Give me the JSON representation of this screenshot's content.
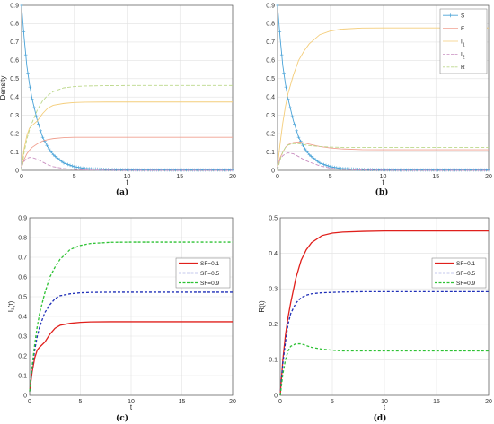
{
  "chart_data": [
    {
      "type": "line",
      "caption": "(a)",
      "xlabel": "t",
      "ylabel": "Density",
      "xlim": [
        0,
        20
      ],
      "ylim": [
        0,
        0.9
      ],
      "xticks": [
        "0",
        "5",
        "10",
        "15",
        "20"
      ],
      "yticks": [
        "0",
        "0.1",
        "0.2",
        "0.3",
        "0.4",
        "0.5",
        "0.6",
        "0.7",
        "0.8",
        "0.9"
      ],
      "grid": true,
      "legend_position": "top-right",
      "x": [
        0,
        0.25,
        0.5,
        0.75,
        1,
        1.5,
        2,
        2.5,
        3,
        4,
        5,
        6,
        8,
        10,
        12,
        14,
        16,
        18,
        20
      ],
      "series": [
        {
          "name": "S",
          "color": "#4aa3d8",
          "style": "solid-marker",
          "values": [
            0.9,
            0.72,
            0.57,
            0.47,
            0.39,
            0.27,
            0.18,
            0.125,
            0.085,
            0.04,
            0.02,
            0.01,
            0.005,
            0.003,
            0.002,
            0.002,
            0.002,
            0.002,
            0.002
          ]
        },
        {
          "name": "E",
          "color": "#f0a090",
          "style": "solid",
          "values": [
            0.02,
            0.06,
            0.09,
            0.11,
            0.125,
            0.145,
            0.16,
            0.168,
            0.173,
            0.178,
            0.18,
            0.18,
            0.18,
            0.18,
            0.18,
            0.18,
            0.18,
            0.18,
            0.18
          ]
        },
        {
          "name": "I_1",
          "color": "#f4cd7a",
          "style": "solid",
          "values": [
            0.02,
            0.12,
            0.19,
            0.23,
            0.245,
            0.27,
            0.31,
            0.34,
            0.355,
            0.365,
            0.37,
            0.372,
            0.373,
            0.373,
            0.373,
            0.373,
            0.373,
            0.373,
            0.373
          ]
        },
        {
          "name": "I_2",
          "color": "#c98ec0",
          "style": "dashed",
          "values": [
            0.02,
            0.05,
            0.065,
            0.07,
            0.07,
            0.06,
            0.045,
            0.03,
            0.02,
            0.01,
            0.005,
            0.002,
            0.001,
            0.0,
            0.0,
            0.0,
            0.0,
            0.0,
            0.0
          ]
        },
        {
          "name": "R",
          "color": "#bcd88a",
          "style": "dashed",
          "values": [
            0.0,
            0.1,
            0.17,
            0.22,
            0.26,
            0.33,
            0.38,
            0.41,
            0.43,
            0.45,
            0.457,
            0.46,
            0.462,
            0.463,
            0.463,
            0.463,
            0.463,
            0.463,
            0.463
          ]
        }
      ]
    },
    {
      "type": "line",
      "caption": "(b)",
      "xlabel": "t",
      "ylabel": "",
      "xlim": [
        0,
        20
      ],
      "ylim": [
        0,
        0.9
      ],
      "xticks": [
        "0",
        "5",
        "10",
        "15",
        "20"
      ],
      "yticks": [
        "0",
        "0.1",
        "0.2",
        "0.3",
        "0.4",
        "0.5",
        "0.6",
        "0.7",
        "0.8",
        "0.9"
      ],
      "grid": true,
      "legend_position": "top-right",
      "x": [
        0,
        0.25,
        0.5,
        0.75,
        1,
        1.5,
        2,
        2.5,
        3,
        4,
        5,
        6,
        8,
        10,
        12,
        14,
        16,
        18,
        20
      ],
      "series": [
        {
          "name": "S",
          "color": "#4aa3d8",
          "style": "solid-marker",
          "values": [
            0.9,
            0.72,
            0.57,
            0.47,
            0.39,
            0.27,
            0.18,
            0.125,
            0.085,
            0.04,
            0.02,
            0.01,
            0.005,
            0.003,
            0.002,
            0.002,
            0.002,
            0.002,
            0.002
          ]
        },
        {
          "name": "E",
          "color": "#f0a090",
          "style": "solid",
          "values": [
            0.02,
            0.07,
            0.1,
            0.125,
            0.14,
            0.152,
            0.155,
            0.15,
            0.143,
            0.13,
            0.122,
            0.117,
            0.113,
            0.112,
            0.112,
            0.112,
            0.112,
            0.112,
            0.112
          ]
        },
        {
          "name": "I_1",
          "color": "#f4cd7a",
          "style": "solid",
          "values": [
            0.02,
            0.15,
            0.26,
            0.35,
            0.42,
            0.52,
            0.6,
            0.65,
            0.69,
            0.74,
            0.76,
            0.77,
            0.776,
            0.777,
            0.777,
            0.777,
            0.777,
            0.777,
            0.777
          ]
        },
        {
          "name": "I_2",
          "color": "#c98ec0",
          "style": "dashed",
          "values": [
            0.02,
            0.06,
            0.08,
            0.09,
            0.095,
            0.09,
            0.075,
            0.058,
            0.045,
            0.025,
            0.012,
            0.006,
            0.002,
            0.001,
            0.0,
            0.0,
            0.0,
            0.0,
            0.0
          ]
        },
        {
          "name": "R",
          "color": "#bcd88a",
          "style": "dashed",
          "values": [
            0.0,
            0.06,
            0.1,
            0.125,
            0.138,
            0.145,
            0.145,
            0.14,
            0.135,
            0.13,
            0.127,
            0.125,
            0.125,
            0.125,
            0.125,
            0.125,
            0.125,
            0.125,
            0.125
          ]
        }
      ]
    },
    {
      "type": "line",
      "caption": "(c)",
      "xlabel": "t",
      "ylabel": "I₁(t)",
      "xlim": [
        0,
        20
      ],
      "ylim": [
        0,
        0.9
      ],
      "xticks": [
        "0",
        "5",
        "10",
        "15",
        "20"
      ],
      "yticks": [
        "0",
        "0.1",
        "0.2",
        "0.3",
        "0.4",
        "0.5",
        "0.6",
        "0.7",
        "0.8",
        "0.9"
      ],
      "grid": true,
      "legend_position": "right",
      "x": [
        0,
        0.25,
        0.5,
        0.75,
        1,
        1.5,
        2,
        2.5,
        3,
        4,
        5,
        6,
        8,
        10,
        12,
        14,
        16,
        18,
        20
      ],
      "series": [
        {
          "name": "SF=0.1",
          "color": "#e0201c",
          "style": "solid",
          "values": [
            0.02,
            0.12,
            0.19,
            0.23,
            0.245,
            0.27,
            0.31,
            0.34,
            0.355,
            0.365,
            0.37,
            0.372,
            0.373,
            0.373,
            0.373,
            0.373,
            0.373,
            0.373,
            0.373
          ]
        },
        {
          "name": "SF=0.5",
          "color": "#1f2fb8",
          "style": "dashed",
          "values": [
            0.02,
            0.14,
            0.23,
            0.3,
            0.35,
            0.42,
            0.46,
            0.49,
            0.505,
            0.515,
            0.52,
            0.522,
            0.523,
            0.523,
            0.523,
            0.523,
            0.523,
            0.523,
            0.523
          ]
        },
        {
          "name": "SF=0.9",
          "color": "#2ec234",
          "style": "dashed",
          "values": [
            0.02,
            0.15,
            0.26,
            0.35,
            0.42,
            0.52,
            0.6,
            0.65,
            0.69,
            0.74,
            0.76,
            0.77,
            0.776,
            0.777,
            0.777,
            0.777,
            0.777,
            0.777,
            0.777
          ]
        }
      ]
    },
    {
      "type": "line",
      "caption": "(d)",
      "xlabel": "t",
      "ylabel": "R(t)",
      "xlim": [
        0,
        20
      ],
      "ylim": [
        0,
        0.5
      ],
      "xticks": [
        "0",
        "5",
        "10",
        "15",
        "20"
      ],
      "yticks": [
        "0",
        "0.1",
        "0.2",
        "0.3",
        "0.4",
        "0.5"
      ],
      "grid": true,
      "legend_position": "right",
      "x": [
        0,
        0.25,
        0.5,
        0.75,
        1,
        1.5,
        2,
        2.5,
        3,
        4,
        5,
        6,
        8,
        10,
        12,
        14,
        16,
        18,
        20
      ],
      "series": [
        {
          "name": "SF=0.1",
          "color": "#e0201c",
          "style": "solid",
          "values": [
            0.0,
            0.1,
            0.17,
            0.22,
            0.26,
            0.33,
            0.38,
            0.41,
            0.43,
            0.45,
            0.457,
            0.46,
            0.462,
            0.463,
            0.463,
            0.463,
            0.463,
            0.463,
            0.463
          ]
        },
        {
          "name": "SF=0.5",
          "color": "#1f2fb8",
          "style": "dashed",
          "values": [
            0.0,
            0.09,
            0.15,
            0.2,
            0.23,
            0.26,
            0.275,
            0.282,
            0.286,
            0.289,
            0.29,
            0.291,
            0.292,
            0.292,
            0.292,
            0.292,
            0.292,
            0.292,
            0.292
          ]
        },
        {
          "name": "SF=0.9",
          "color": "#2ec234",
          "style": "dashed",
          "values": [
            0.0,
            0.06,
            0.1,
            0.125,
            0.138,
            0.145,
            0.145,
            0.14,
            0.135,
            0.13,
            0.127,
            0.125,
            0.125,
            0.125,
            0.125,
            0.125,
            0.125,
            0.125,
            0.125
          ]
        }
      ]
    }
  ]
}
